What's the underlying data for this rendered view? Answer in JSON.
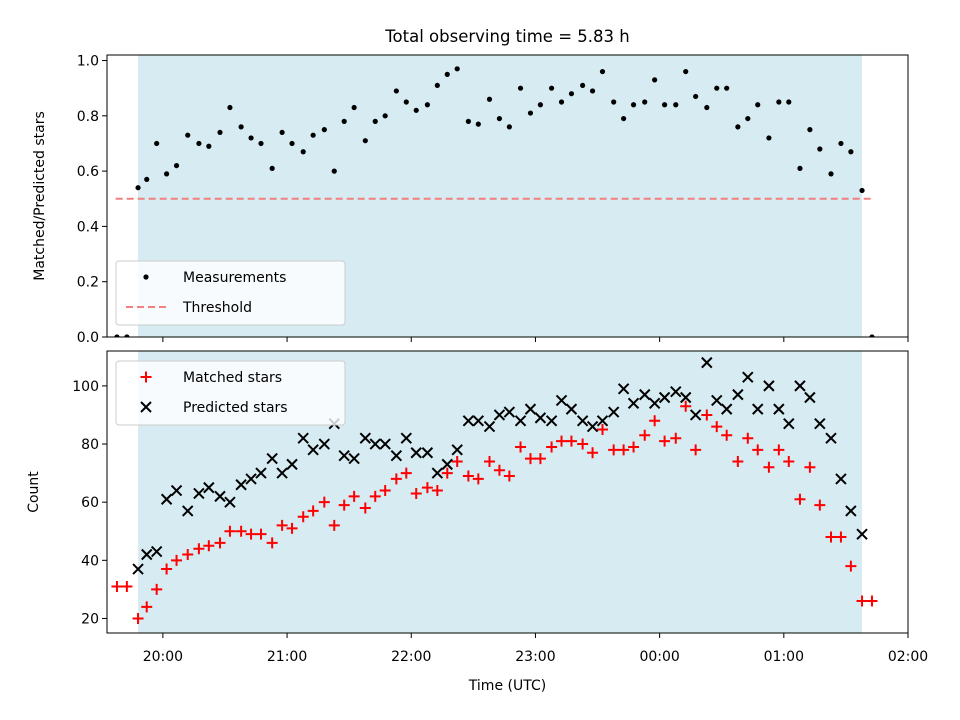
{
  "chart_data": [
    {
      "type": "scatter",
      "title": "Total observing time = 5.83 h",
      "ylabel": "Matched/Predicted stars",
      "xlabel": "",
      "xlim": [
        -0.45,
        6.0
      ],
      "ylim": [
        0.0,
        1.02
      ],
      "yticks": [
        0.0,
        0.2,
        0.4,
        0.6,
        0.8,
        1.0
      ],
      "ytick_labels": [
        "0.0",
        "0.2",
        "0.4",
        "0.6",
        "0.8",
        "1.0"
      ],
      "grid": false,
      "observing_window": [
        -0.2,
        5.63
      ],
      "threshold": {
        "value": 0.5,
        "x": [
          -0.38,
          5.72
        ]
      },
      "legend": {
        "placement": "lower-left",
        "entries": [
          {
            "label": "Measurements",
            "marker": "dot",
            "color": "#000000"
          },
          {
            "label": "Threshold",
            "marker": "dashed-line",
            "color": "#f28080"
          }
        ]
      },
      "series": [
        {
          "name": "Measurements",
          "color": "#000000",
          "x": [
            -0.37,
            -0.29,
            -0.2,
            -0.13,
            -0.05,
            0.03,
            0.11,
            0.2,
            0.29,
            0.37,
            0.46,
            0.54,
            0.63,
            0.71,
            0.79,
            0.88,
            0.96,
            1.04,
            1.13,
            1.21,
            1.3,
            1.38,
            1.46,
            1.54,
            1.63,
            1.71,
            1.79,
            1.88,
            1.96,
            2.04,
            2.13,
            2.21,
            2.29,
            2.37,
            2.46,
            2.54,
            2.63,
            2.71,
            2.79,
            2.88,
            2.96,
            3.04,
            3.13,
            3.21,
            3.29,
            3.38,
            3.46,
            3.54,
            3.63,
            3.71,
            3.79,
            3.88,
            3.96,
            4.04,
            4.13,
            4.21,
            4.29,
            4.38,
            4.46,
            4.54,
            4.63,
            4.71,
            4.79,
            4.88,
            4.96,
            5.04,
            5.13,
            5.21,
            5.29,
            5.38,
            5.46,
            5.54,
            5.63,
            5.71
          ],
          "y": [
            0.0,
            0.0,
            0.54,
            0.57,
            0.7,
            0.59,
            0.62,
            0.73,
            0.7,
            0.69,
            0.74,
            0.83,
            0.76,
            0.72,
            0.7,
            0.61,
            0.74,
            0.7,
            0.67,
            0.73,
            0.75,
            0.6,
            0.78,
            0.83,
            0.71,
            0.78,
            0.8,
            0.89,
            0.85,
            0.82,
            0.84,
            0.91,
            0.95,
            0.97,
            0.78,
            0.77,
            0.86,
            0.79,
            0.76,
            0.9,
            0.81,
            0.84,
            0.9,
            0.85,
            0.88,
            0.91,
            0.89,
            0.96,
            0.85,
            0.79,
            0.84,
            0.85,
            0.93,
            0.84,
            0.84,
            0.96,
            0.87,
            0.83,
            0.9,
            0.9,
            0.76,
            0.79,
            0.84,
            0.72,
            0.85,
            0.85,
            0.61,
            0.75,
            0.68,
            0.59,
            0.7,
            0.67,
            0.53,
            0.0
          ]
        }
      ]
    },
    {
      "type": "scatter",
      "title": "",
      "ylabel": "Count",
      "xlabel": "Time (UTC)",
      "xlim": [
        -0.45,
        6.0
      ],
      "ylim": [
        15,
        112
      ],
      "yticks": [
        20,
        40,
        60,
        80,
        100
      ],
      "ytick_labels": [
        "20",
        "40",
        "60",
        "80",
        "100"
      ],
      "xticks": [
        0,
        1,
        2,
        3,
        4,
        5,
        6
      ],
      "xtick_labels": [
        "20:00",
        "21:00",
        "22:00",
        "23:00",
        "00:00",
        "01:00",
        "02:00"
      ],
      "grid": false,
      "observing_window": [
        -0.2,
        5.63
      ],
      "legend": {
        "placement": "top-left",
        "entries": [
          {
            "label": "Matched stars",
            "marker": "plus",
            "color": "#ff0000"
          },
          {
            "label": "Predicted stars",
            "marker": "x",
            "color": "#000000"
          }
        ]
      },
      "series": [
        {
          "name": "Matched stars",
          "marker": "plus",
          "color": "#ff0000",
          "x": [
            -0.37,
            -0.29,
            -0.2,
            -0.13,
            -0.05,
            0.03,
            0.11,
            0.2,
            0.29,
            0.37,
            0.46,
            0.54,
            0.63,
            0.71,
            0.79,
            0.88,
            0.96,
            1.04,
            1.13,
            1.21,
            1.3,
            1.38,
            1.46,
            1.54,
            1.63,
            1.71,
            1.79,
            1.88,
            1.96,
            2.04,
            2.13,
            2.21,
            2.29,
            2.37,
            2.46,
            2.54,
            2.63,
            2.71,
            2.79,
            2.88,
            2.96,
            3.04,
            3.13,
            3.21,
            3.29,
            3.38,
            3.46,
            3.54,
            3.63,
            3.71,
            3.79,
            3.88,
            3.96,
            4.04,
            4.13,
            4.21,
            4.29,
            4.38,
            4.46,
            4.54,
            4.63,
            4.71,
            4.79,
            4.88,
            4.96,
            5.04,
            5.13,
            5.21,
            5.29,
            5.38,
            5.46,
            5.54,
            5.63,
            5.71
          ],
          "y": [
            31,
            31,
            20,
            24,
            30,
            37,
            40,
            42,
            44,
            45,
            46,
            50,
            50,
            49,
            49,
            46,
            52,
            51,
            55,
            57,
            60,
            52,
            59,
            62,
            58,
            62,
            64,
            68,
            70,
            63,
            65,
            64,
            70,
            74,
            69,
            68,
            74,
            71,
            69,
            79,
            75,
            75,
            79,
            81,
            81,
            80,
            77,
            85,
            78,
            78,
            79,
            83,
            88,
            81,
            82,
            93,
            78,
            90,
            86,
            83,
            74,
            82,
            78,
            72,
            78,
            74,
            61,
            72,
            59,
            48,
            48,
            38,
            26,
            26
          ]
        },
        {
          "name": "Predicted stars",
          "marker": "x",
          "color": "#000000",
          "x": [
            -0.2,
            -0.13,
            -0.05,
            0.03,
            0.11,
            0.2,
            0.29,
            0.37,
            0.46,
            0.54,
            0.63,
            0.71,
            0.79,
            0.88,
            0.96,
            1.04,
            1.13,
            1.21,
            1.3,
            1.38,
            1.46,
            1.54,
            1.63,
            1.71,
            1.79,
            1.88,
            1.96,
            2.04,
            2.13,
            2.21,
            2.29,
            2.37,
            2.46,
            2.54,
            2.63,
            2.71,
            2.79,
            2.88,
            2.96,
            3.04,
            3.13,
            3.21,
            3.29,
            3.38,
            3.46,
            3.54,
            3.63,
            3.71,
            3.79,
            3.88,
            3.96,
            4.04,
            4.13,
            4.21,
            4.29,
            4.38,
            4.46,
            4.54,
            4.63,
            4.71,
            4.79,
            4.88,
            4.96,
            5.04,
            5.13,
            5.21,
            5.29,
            5.38,
            5.46,
            5.54,
            5.63
          ],
          "y": [
            37,
            42,
            43,
            61,
            64,
            57,
            63,
            65,
            62,
            60,
            66,
            68,
            70,
            75,
            70,
            73,
            82,
            78,
            80,
            87,
            76,
            75,
            82,
            80,
            80,
            76,
            82,
            77,
            77,
            70,
            73,
            78,
            88,
            88,
            86,
            90,
            91,
            88,
            92,
            89,
            88,
            95,
            92,
            88,
            86,
            88,
            91,
            99,
            94,
            97,
            94,
            96,
            98,
            96,
            90,
            108,
            95,
            92,
            97,
            103,
            92,
            100,
            92,
            87,
            100,
            96,
            87,
            82,
            68,
            57,
            49
          ]
        }
      ]
    }
  ]
}
